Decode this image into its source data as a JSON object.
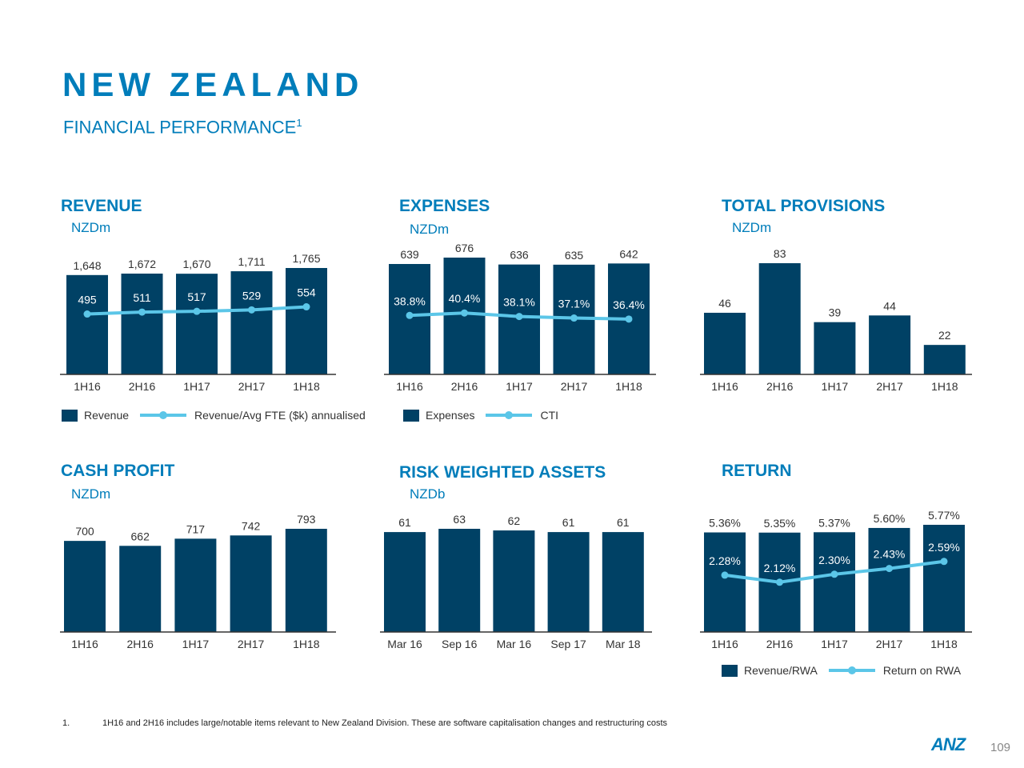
{
  "header": {
    "title": "NEW ZEALAND",
    "subtitle": "FINANCIAL PERFORMANCE",
    "subtitle_sup": "1"
  },
  "colors": {
    "bar": "#004165",
    "line": "#5bc6e8",
    "accent": "#007dba"
  },
  "chart_data": [
    {
      "id": "revenue",
      "type": "bar+line",
      "title": "REVENUE",
      "unit": "NZDm",
      "categories": [
        "1H16",
        "2H16",
        "1H17",
        "2H17",
        "1H18"
      ],
      "series": [
        {
          "name": "Revenue",
          "type": "bar",
          "values": [
            1648,
            1672,
            1670,
            1711,
            1765
          ],
          "labels": [
            "1,648",
            "1,672",
            "1,670",
            "1,711",
            "1,765"
          ]
        },
        {
          "name": "Revenue/Avg FTE ($k) annualised",
          "type": "line",
          "values": [
            495,
            511,
            517,
            529,
            554
          ],
          "labels": [
            "495",
            "511",
            "517",
            "529",
            "554"
          ]
        }
      ]
    },
    {
      "id": "expenses",
      "type": "bar+line",
      "title": "EXPENSES",
      "unit": "NZDm",
      "categories": [
        "1H16",
        "2H16",
        "1H17",
        "2H17",
        "1H18"
      ],
      "series": [
        {
          "name": "Expenses",
          "type": "bar",
          "values": [
            639,
            676,
            636,
            635,
            642
          ],
          "labels": [
            "639",
            "676",
            "636",
            "635",
            "642"
          ]
        },
        {
          "name": "CTI",
          "type": "line",
          "values": [
            38.8,
            40.4,
            38.1,
            37.1,
            36.4
          ],
          "labels": [
            "38.8%",
            "40.4%",
            "38.1%",
            "37.1%",
            "36.4%"
          ]
        }
      ]
    },
    {
      "id": "provisions",
      "type": "bar",
      "title": "TOTAL PROVISIONS",
      "unit": "NZDm",
      "categories": [
        "1H16",
        "2H16",
        "1H17",
        "2H17",
        "1H18"
      ],
      "series": [
        {
          "type": "bar",
          "values": [
            46,
            83,
            39,
            44,
            22
          ],
          "labels": [
            "46",
            "83",
            "39",
            "44",
            "22"
          ]
        }
      ]
    },
    {
      "id": "cashprofit",
      "type": "bar",
      "title": "CASH PROFIT",
      "unit": "NZDm",
      "categories": [
        "1H16",
        "2H16",
        "1H17",
        "2H17",
        "1H18"
      ],
      "series": [
        {
          "type": "bar",
          "values": [
            700,
            662,
            717,
            742,
            793
          ],
          "labels": [
            "700",
            "662",
            "717",
            "742",
            "793"
          ]
        }
      ]
    },
    {
      "id": "rwa",
      "type": "bar",
      "title": "RISK WEIGHTED ASSETS",
      "unit": "NZDb",
      "categories": [
        "Mar 16",
        "Sep 16",
        "Mar 16",
        "Sep 17",
        "Mar 18"
      ],
      "series": [
        {
          "type": "bar",
          "values": [
            61,
            63,
            62,
            61,
            61
          ],
          "labels": [
            "61",
            "63",
            "62",
            "61",
            "61"
          ]
        }
      ]
    },
    {
      "id": "return",
      "type": "bar+line",
      "title": "RETURN",
      "unit": "",
      "categories": [
        "1H16",
        "2H16",
        "1H17",
        "2H17",
        "1H18"
      ],
      "series": [
        {
          "name": "Revenue/RWA",
          "type": "bar",
          "values": [
            5.36,
            5.35,
            5.37,
            5.6,
            5.77
          ],
          "labels": [
            "5.36%",
            "5.35%",
            "5.37%",
            "5.60%",
            "5.77%"
          ]
        },
        {
          "name": "Return on RWA",
          "type": "line",
          "values": [
            2.28,
            2.12,
            2.3,
            2.43,
            2.59
          ],
          "labels": [
            "2.28%",
            "2.12%",
            "2.30%",
            "2.43%",
            "2.59%"
          ]
        }
      ]
    }
  ],
  "footnote": {
    "number": "1.",
    "text": "1H16 and 2H16 includes large/notable items relevant to New Zealand Division. These are software capitalisation changes and restructuring costs"
  },
  "footer": {
    "logo": "ANZ",
    "page": "109"
  }
}
